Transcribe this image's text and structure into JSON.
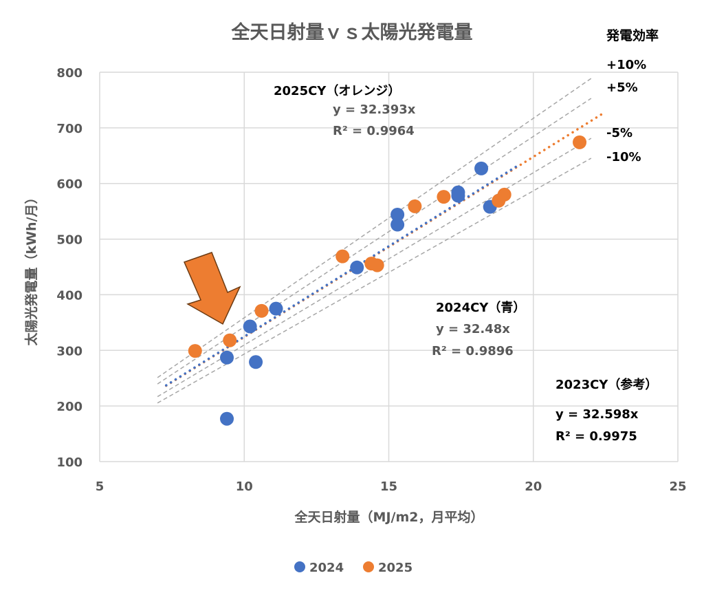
{
  "chart_data": {
    "type": "scatter",
    "title": "全天日射量ｖｓ太陽光発電量",
    "xlabel": "全天日射量（MJ/m2，月平均）",
    "ylabel": "太陽光発電量（kWh/月）",
    "xlim": [
      5,
      25
    ],
    "ylim": [
      100,
      800
    ],
    "xticks": [
      5,
      10,
      15,
      20,
      25
    ],
    "yticks": [
      100,
      200,
      300,
      400,
      500,
      600,
      700,
      800
    ],
    "grid": true,
    "legend_placement": "bottom",
    "series": [
      {
        "name": "2024",
        "color": "#4472C4",
        "points": [
          [
            9.4,
            177
          ],
          [
            9.4,
            287
          ],
          [
            10.2,
            343
          ],
          [
            10.4,
            279
          ],
          [
            11.1,
            375
          ],
          [
            13.9,
            449
          ],
          [
            15.3,
            544
          ],
          [
            15.3,
            526
          ],
          [
            17.4,
            584
          ],
          [
            17.4,
            578
          ],
          [
            18.2,
            627
          ],
          [
            18.5,
            558
          ]
        ],
        "trendline": {
          "slope": 32.48,
          "x_range": [
            7.3,
            19.5
          ],
          "equation": "y = 32.48x",
          "r2": "R² = 0.9896"
        }
      },
      {
        "name": "2025",
        "color": "#ED7D31",
        "points": [
          [
            8.3,
            299
          ],
          [
            9.5,
            318
          ],
          [
            10.6,
            371
          ],
          [
            13.4,
            469
          ],
          [
            14.4,
            456
          ],
          [
            14.6,
            453
          ],
          [
            15.9,
            559
          ],
          [
            16.9,
            576
          ],
          [
            18.8,
            569
          ],
          [
            19.0,
            580
          ],
          [
            21.6,
            674
          ]
        ],
        "trendline": {
          "slope": 32.393,
          "x_range": [
            7.3,
            22.5
          ],
          "equation": "y = 32.393x",
          "r2": "R² = 0.9964"
        }
      }
    ],
    "reference_lines": {
      "base_slope": 32.598,
      "x_range": [
        7,
        22
      ],
      "factors": [
        1.1,
        1.05,
        0.95,
        0.9
      ],
      "labels": [
        "+10%",
        "+5%",
        "-5%",
        "-10%"
      ],
      "header": "発電効率"
    },
    "annotations": {
      "cy2025_label": "2025CY（オレンジ）",
      "cy2024_label": "2024CY（青）",
      "cy2023_label": "2023CY（参考）",
      "cy2023_equation": "y = 32.598x",
      "cy2023_r2": "R² = 0.9975"
    }
  }
}
